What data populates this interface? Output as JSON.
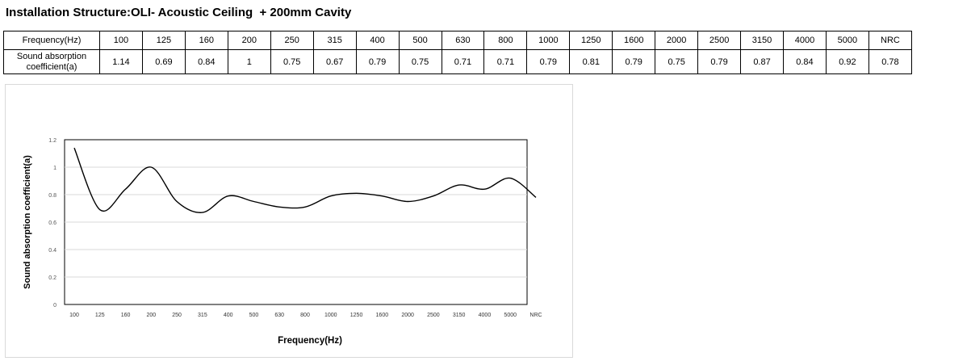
{
  "title": "Installation Structure:OLI- Acoustic Ceiling  + 200mm Cavity",
  "table": {
    "row1_header": "Frequency(Hz)",
    "row2_header": "Sound absorption coefficient(a)",
    "frequencies": [
      "100",
      "125",
      "160",
      "200",
      "250",
      "315",
      "400",
      "500",
      "630",
      "800",
      "1000",
      "1250",
      "1600",
      "2000",
      "2500",
      "3150",
      "4000",
      "5000",
      "NRC"
    ],
    "coefficients": [
      "1.14",
      "0.69",
      "0.84",
      "1",
      "0.75",
      "0.67",
      "0.79",
      "0.75",
      "0.71",
      "0.71",
      "0.79",
      "0.81",
      "0.79",
      "0.75",
      "0.79",
      "0.87",
      "0.84",
      "0.92",
      "0.78"
    ]
  },
  "chart_data": {
    "type": "line",
    "categories": [
      "100",
      "125",
      "160",
      "200",
      "250",
      "315",
      "400",
      "500",
      "630",
      "800",
      "1000",
      "1250",
      "1600",
      "2000",
      "2500",
      "3150",
      "4000",
      "5000",
      "NRC"
    ],
    "series": [
      {
        "values": [
          1.14,
          0.69,
          0.84,
          1.0,
          0.75,
          0.67,
          0.79,
          0.75,
          0.71,
          0.71,
          0.79,
          0.81,
          0.79,
          0.75,
          0.79,
          0.87,
          0.84,
          0.92,
          0.78
        ]
      }
    ],
    "yticks": [
      "0",
      "0.2",
      "0.4",
      "0.6",
      "0.8",
      "1",
      "1.2"
    ],
    "ylim": [
      0,
      1.2
    ],
    "xlabel": "Frequency(Hz)",
    "ylabel": "Sound absorption coefficient(a)",
    "grid": true,
    "line_color": "#000000",
    "grid_color": "#d9d9d9"
  }
}
